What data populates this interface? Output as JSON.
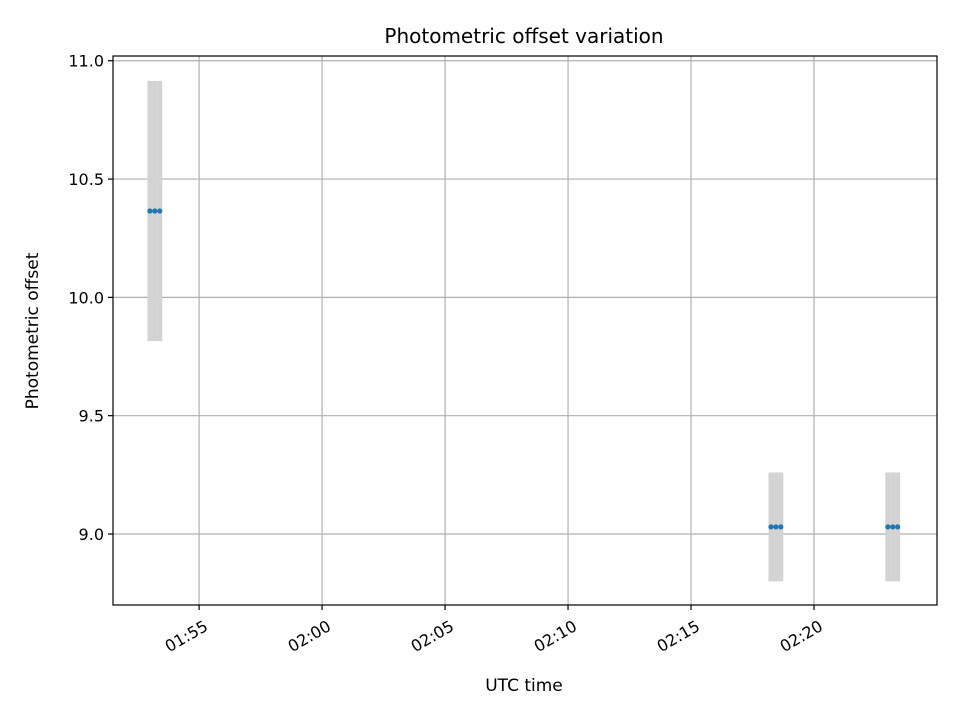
{
  "chart_data": {
    "type": "scatter",
    "title": "Photometric offset variation",
    "xlabel": "UTC time",
    "ylabel": "Photometric offset",
    "x_unit": "time",
    "x_ticks": [
      "01:55",
      "02:00",
      "02:05",
      "02:10",
      "02:15",
      "02:20"
    ],
    "y_ticks": [
      "9.0",
      "9.5",
      "10.0",
      "10.5",
      "11.0"
    ],
    "xlim": [
      "01:51:30",
      "02:25:00"
    ],
    "ylim": [
      8.7,
      11.02
    ],
    "grid": true,
    "series": [
      {
        "points": [
          {
            "time": "01:53:00",
            "y": 10.365,
            "err": 0.55
          },
          {
            "time": "01:53:12",
            "y": 10.365,
            "err": 0.55
          },
          {
            "time": "01:53:24",
            "y": 10.365,
            "err": 0.55
          },
          {
            "time": "02:18:15",
            "y": 9.03,
            "err": 0.23
          },
          {
            "time": "02:18:27",
            "y": 9.03,
            "err": 0.23
          },
          {
            "time": "02:18:39",
            "y": 9.03,
            "err": 0.23
          },
          {
            "time": "02:23:00",
            "y": 9.03,
            "err": 0.23
          },
          {
            "time": "02:23:12",
            "y": 9.03,
            "err": 0.23
          },
          {
            "time": "02:23:24",
            "y": 9.03,
            "err": 0.23
          }
        ]
      }
    ],
    "colors": {
      "marker": "#1f77b4",
      "errorbar": "#d3d3d3",
      "grid": "#b0b0b0"
    }
  }
}
